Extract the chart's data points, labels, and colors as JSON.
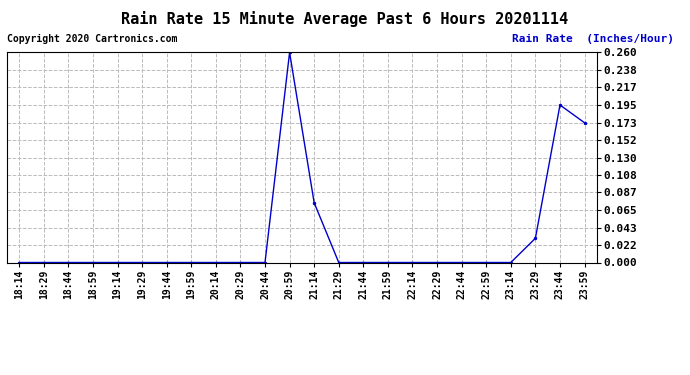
{
  "title": "Rain Rate 15 Minute Average Past 6 Hours 20201114",
  "copyright_text": "Copyright 2020 Cartronics.com",
  "ylabel": "Rain Rate  (Inches/Hour)",
  "background_color": "#ffffff",
  "plot_bg_color": "#ffffff",
  "line_color": "#0000cc",
  "grid_color": "#bbbbbb",
  "title_color": "#000000",
  "ylabel_color": "#0000cc",
  "copyright_color": "#000000",
  "x_labels": [
    "18:14",
    "18:29",
    "18:44",
    "18:59",
    "19:14",
    "19:29",
    "19:44",
    "19:59",
    "20:14",
    "20:29",
    "20:44",
    "20:59",
    "21:14",
    "21:29",
    "21:44",
    "21:59",
    "22:14",
    "22:29",
    "22:44",
    "22:59",
    "23:14",
    "23:29",
    "23:44",
    "23:59"
  ],
  "y_values": [
    0.0,
    0.0,
    0.0,
    0.0,
    0.0,
    0.0,
    0.0,
    0.0,
    0.0,
    0.0,
    0.0,
    0.26,
    0.074,
    0.0,
    0.0,
    0.0,
    0.0,
    0.0,
    0.0,
    0.0,
    0.0,
    0.03,
    0.195,
    0.173
  ],
  "yticks": [
    0.0,
    0.022,
    0.043,
    0.065,
    0.087,
    0.108,
    0.13,
    0.152,
    0.173,
    0.195,
    0.217,
    0.238,
    0.26
  ],
  "ylim": [
    0.0,
    0.26
  ],
  "title_fontsize": 11,
  "tick_fontsize": 7,
  "ylabel_fontsize": 8,
  "copyright_fontsize": 7,
  "marker_size": 3,
  "line_width": 1.0
}
